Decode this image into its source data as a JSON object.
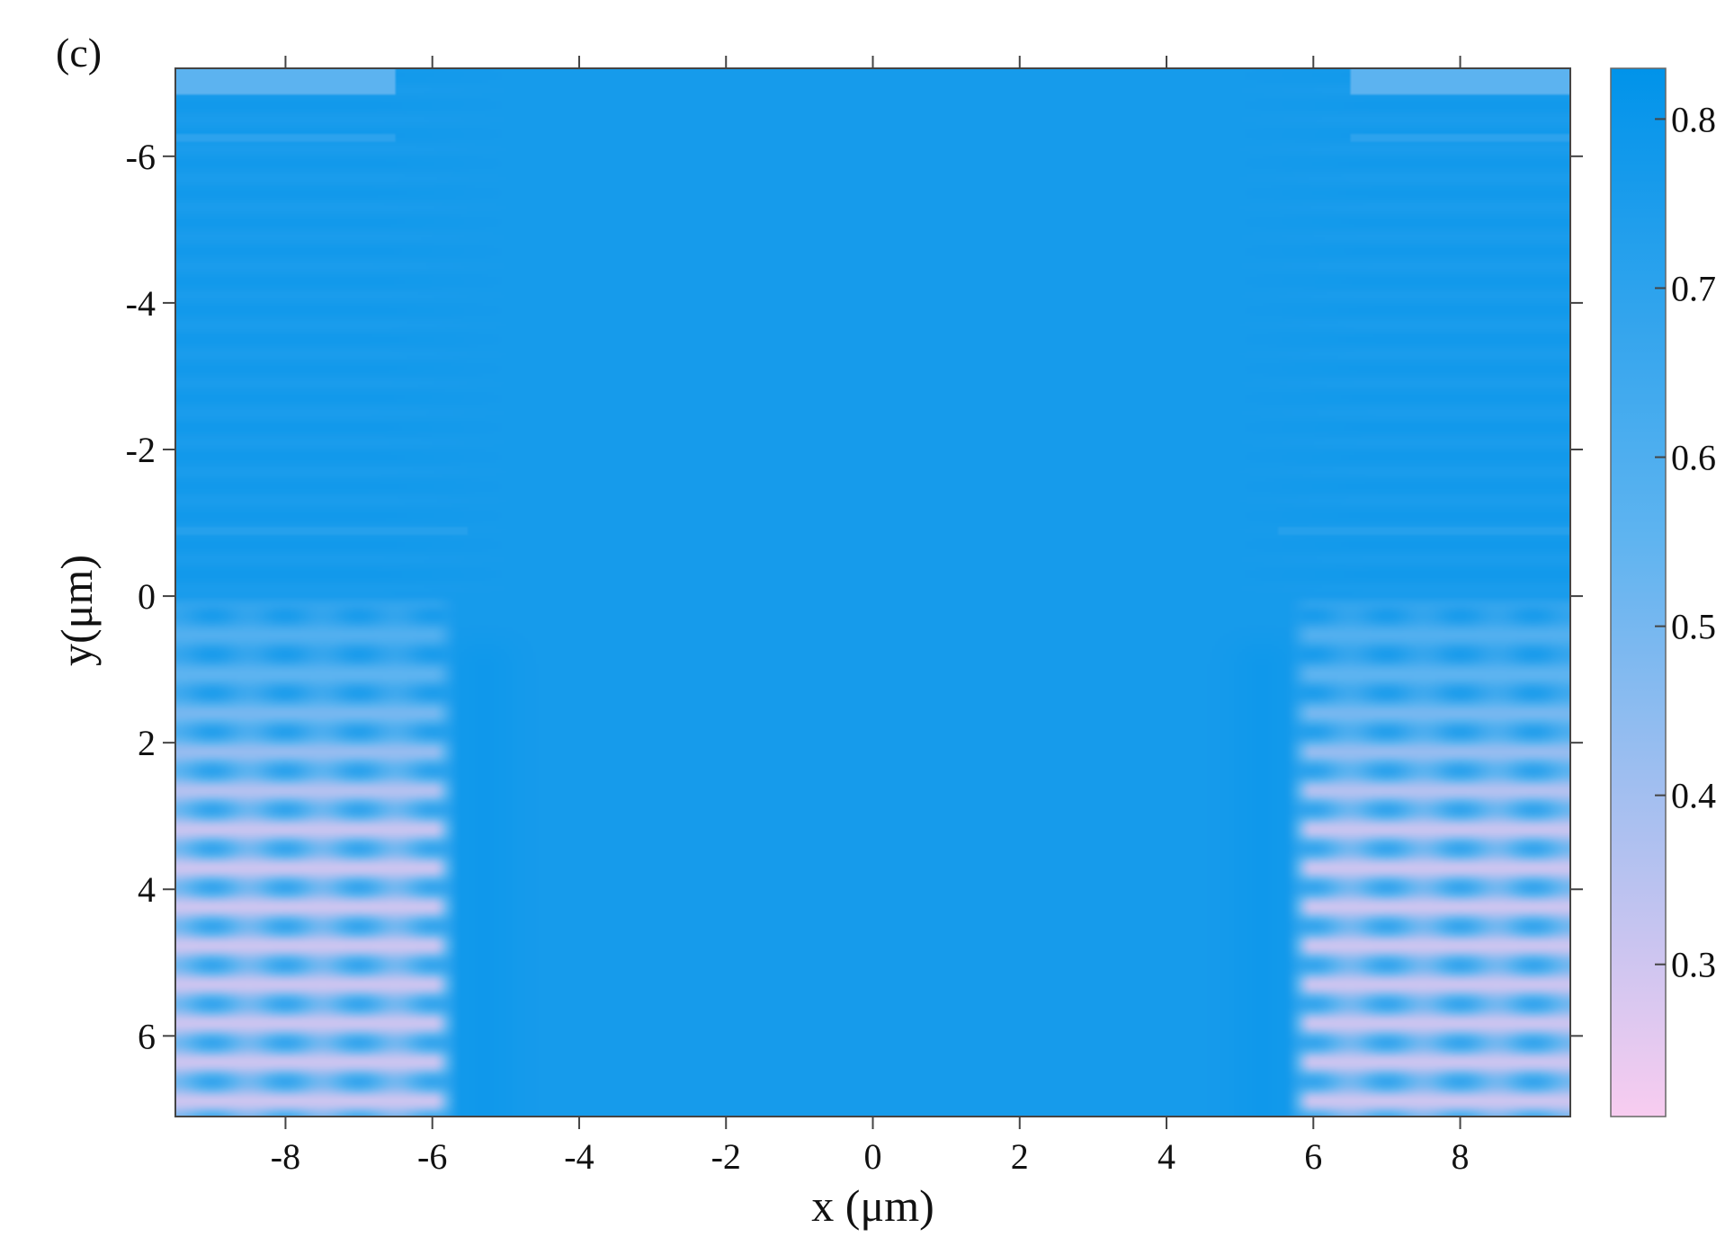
{
  "chart_data": {
    "type": "heatmap",
    "panel_label": "(c)",
    "title": "",
    "xlabel": "x (μm)",
    "ylabel": "y(μm)",
    "xlim": [
      -9.5,
      9.5
    ],
    "ylim": [
      -7.2,
      7.1
    ],
    "y_inverted": true,
    "grid": false,
    "x_ticks": [
      -8,
      -6,
      -4,
      -2,
      0,
      2,
      4,
      6,
      8
    ],
    "x_tick_labels": [
      "-8",
      "-6",
      "-4",
      "-2",
      "0",
      "2",
      "4",
      "6",
      "8"
    ],
    "y_ticks": [
      -6,
      -4,
      -2,
      0,
      2,
      4,
      6
    ],
    "y_tick_labels": [
      "-6",
      "-4",
      "-2",
      "0",
      "2",
      "4",
      "6"
    ],
    "colorbar": {
      "range": [
        0.21,
        0.83
      ],
      "ticks": [
        0.3,
        0.4,
        0.5,
        0.6,
        0.7,
        0.8
      ],
      "tick_labels": [
        "0.3",
        "0.4",
        "0.5",
        "0.6",
        "0.7",
        "0.8"
      ],
      "color_low": "#f8ccf0",
      "color_mid": "#5fb4f0",
      "color_high": "#0093ea"
    },
    "regions": [
      {
        "name": "central channel",
        "x_range": [
          -6,
          6
        ],
        "y_range": [
          -7.2,
          7.1
        ],
        "approx_value": 0.77
      },
      {
        "name": "top band",
        "x_range": [
          -9.5,
          9.5
        ],
        "y_range": [
          -7.2,
          0
        ],
        "approx_value": 0.76
      },
      {
        "name": "left fringe region",
        "x_range": [
          -9.5,
          -5.8
        ],
        "y_range": [
          0,
          7.1
        ],
        "approx_range": [
          0.3,
          0.8
        ],
        "fringe_period_y": 0.53
      },
      {
        "name": "right fringe region",
        "x_range": [
          5.8,
          9.5
        ],
        "y_range": [
          0,
          7.1
        ],
        "approx_range": [
          0.3,
          0.8
        ],
        "fringe_period_y": 0.53
      }
    ]
  }
}
